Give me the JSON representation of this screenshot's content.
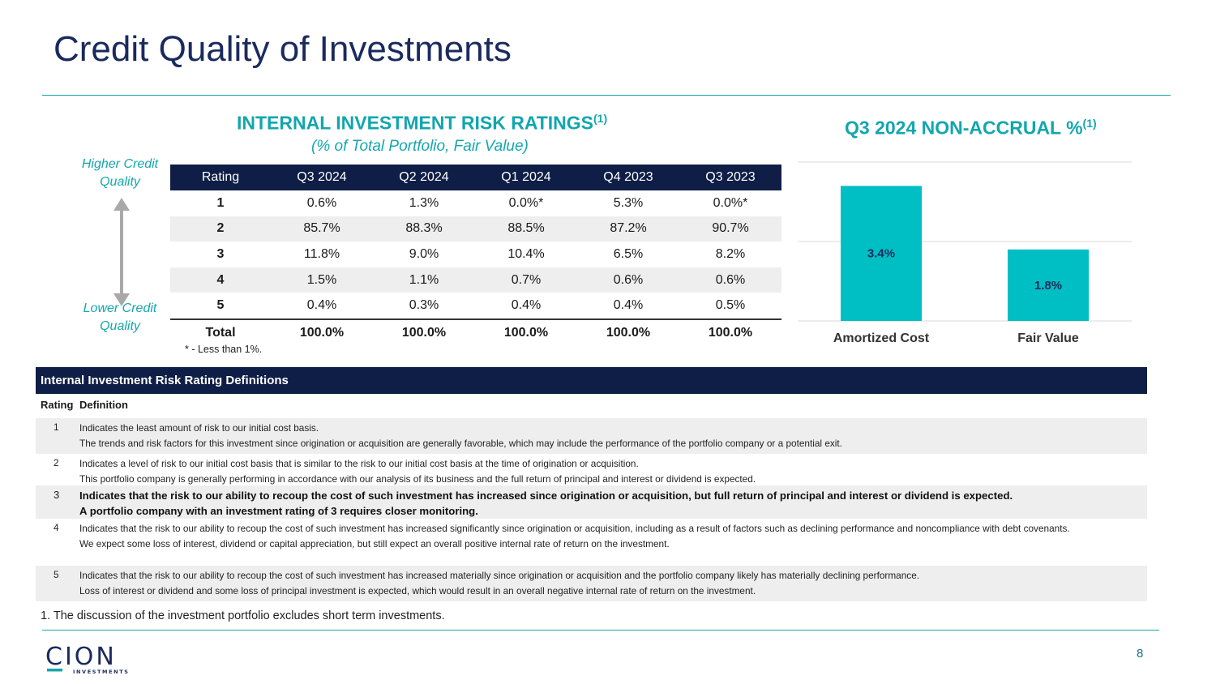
{
  "page": {
    "title": "Credit Quality of Investments",
    "page_number": "8",
    "footnote": "1.   The discussion of the investment portfolio excludes short term investments."
  },
  "risk_ratings": {
    "title": "INTERNAL INVESTMENT RISK RATINGS",
    "title_sup": "(1)",
    "subtitle": "(% of Total Portfolio, Fair Value)",
    "higher_label": "Higher Credit Quality",
    "lower_label": "Lower Credit Quality",
    "columns": [
      "Rating",
      "Q3 2024",
      "Q2 2024",
      "Q1 2024",
      "Q4 2023",
      "Q3 2023"
    ],
    "rows": [
      [
        "1",
        "0.6%",
        "1.3%",
        "0.0%*",
        "5.3%",
        "0.0%*"
      ],
      [
        "2",
        "85.7%",
        "88.3%",
        "88.5%",
        "87.2%",
        "90.7%"
      ],
      [
        "3",
        "11.8%",
        "9.0%",
        "10.4%",
        "6.5%",
        "8.2%"
      ],
      [
        "4",
        "1.5%",
        "1.1%",
        "0.7%",
        "0.6%",
        "0.6%"
      ],
      [
        "5",
        "0.4%",
        "0.3%",
        "0.4%",
        "0.4%",
        "0.5%"
      ]
    ],
    "total": [
      "Total",
      "100.0%",
      "100.0%",
      "100.0%",
      "100.0%",
      "100.0%"
    ],
    "note": "* - Less than 1%."
  },
  "chart_data": {
    "type": "bar",
    "title": "Q3 2024 NON-ACCRUAL %",
    "title_sup": "(1)",
    "categories": [
      "Amortized Cost",
      "Fair Value"
    ],
    "values": [
      3.4,
      1.8
    ],
    "value_labels": [
      "3.4%",
      "1.8%"
    ],
    "ylim": [
      0,
      4
    ],
    "grid": true,
    "bar_color": "#00bfc4"
  },
  "definitions": {
    "header": "Internal Investment Risk Rating Definitions",
    "col_rating": "Rating",
    "col_definition": "Definition",
    "rows": [
      {
        "num": "1",
        "lines": [
          "Indicates the least amount of risk to our initial cost basis.",
          "The trends and risk factors for this investment since origination or acquisition are generally favorable, which may include the performance of the portfolio company or a potential exit."
        ]
      },
      {
        "num": "2",
        "lines": [
          "Indicates a level of risk to our initial cost basis that is similar to the risk to our initial cost basis at the time of origination or acquisition.",
          "This portfolio company is generally performing in accordance with our analysis of its business and the full return of principal and interest or dividend is expected."
        ]
      },
      {
        "num": "3",
        "lines": [
          "Indicates that the risk to our ability to recoup the cost of such investment has increased since origination or acquisition, but full return of principal and interest or dividend is expected.",
          "A portfolio company with an investment rating of 3 requires closer monitoring."
        ]
      },
      {
        "num": "4",
        "lines": [
          "Indicates that the risk to our ability to recoup the cost of such investment has increased significantly since origination or acquisition, including as a result of factors such as declining performance and noncompliance with debt covenants.",
          "We expect some loss of interest, dividend or capital appreciation, but still expect an overall positive internal rate of return on the investment."
        ]
      },
      {
        "num": "5",
        "lines": [
          "Indicates that the risk to our ability to recoup the cost of such investment has increased materially since origination or acquisition and the portfolio company likely has materially declining performance.",
          "Loss of interest or dividend and some loss of principal investment is expected, which would result in an overall negative internal rate of return on the investment."
        ]
      }
    ]
  },
  "logo": {
    "name": "CION",
    "sub": "INVESTMENTS"
  },
  "colors": {
    "navy": "#0f1e46",
    "teal": "#12a6ae",
    "bar": "#00bfc4"
  }
}
